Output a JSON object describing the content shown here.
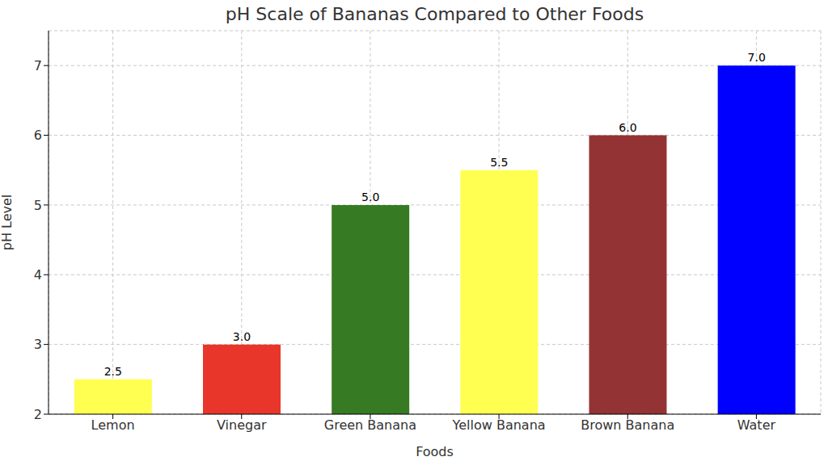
{
  "chart_data": {
    "type": "bar",
    "title": "pH Scale of Bananas Compared to Other Foods",
    "x_label": "Foods",
    "y_label": "pH Level",
    "categories": [
      "Lemon",
      "Vinegar",
      "Green Banana",
      "Yellow Banana",
      "Brown Banana",
      "Water"
    ],
    "values": [
      2.5,
      3.0,
      5.0,
      5.5,
      6.0,
      7.0
    ],
    "value_labels": [
      "2.5",
      "3.0",
      "5.0",
      "5.5",
      "6.0",
      "7.0"
    ],
    "colors": [
      "#ffff52",
      "#e8362a",
      "#367b23",
      "#ffff52",
      "#943333",
      "#0000ff"
    ],
    "ylim": [
      2,
      7.5
    ],
    "yticks": [
      2,
      3,
      4,
      5,
      6,
      7
    ],
    "grid": true,
    "data_labels": true
  }
}
